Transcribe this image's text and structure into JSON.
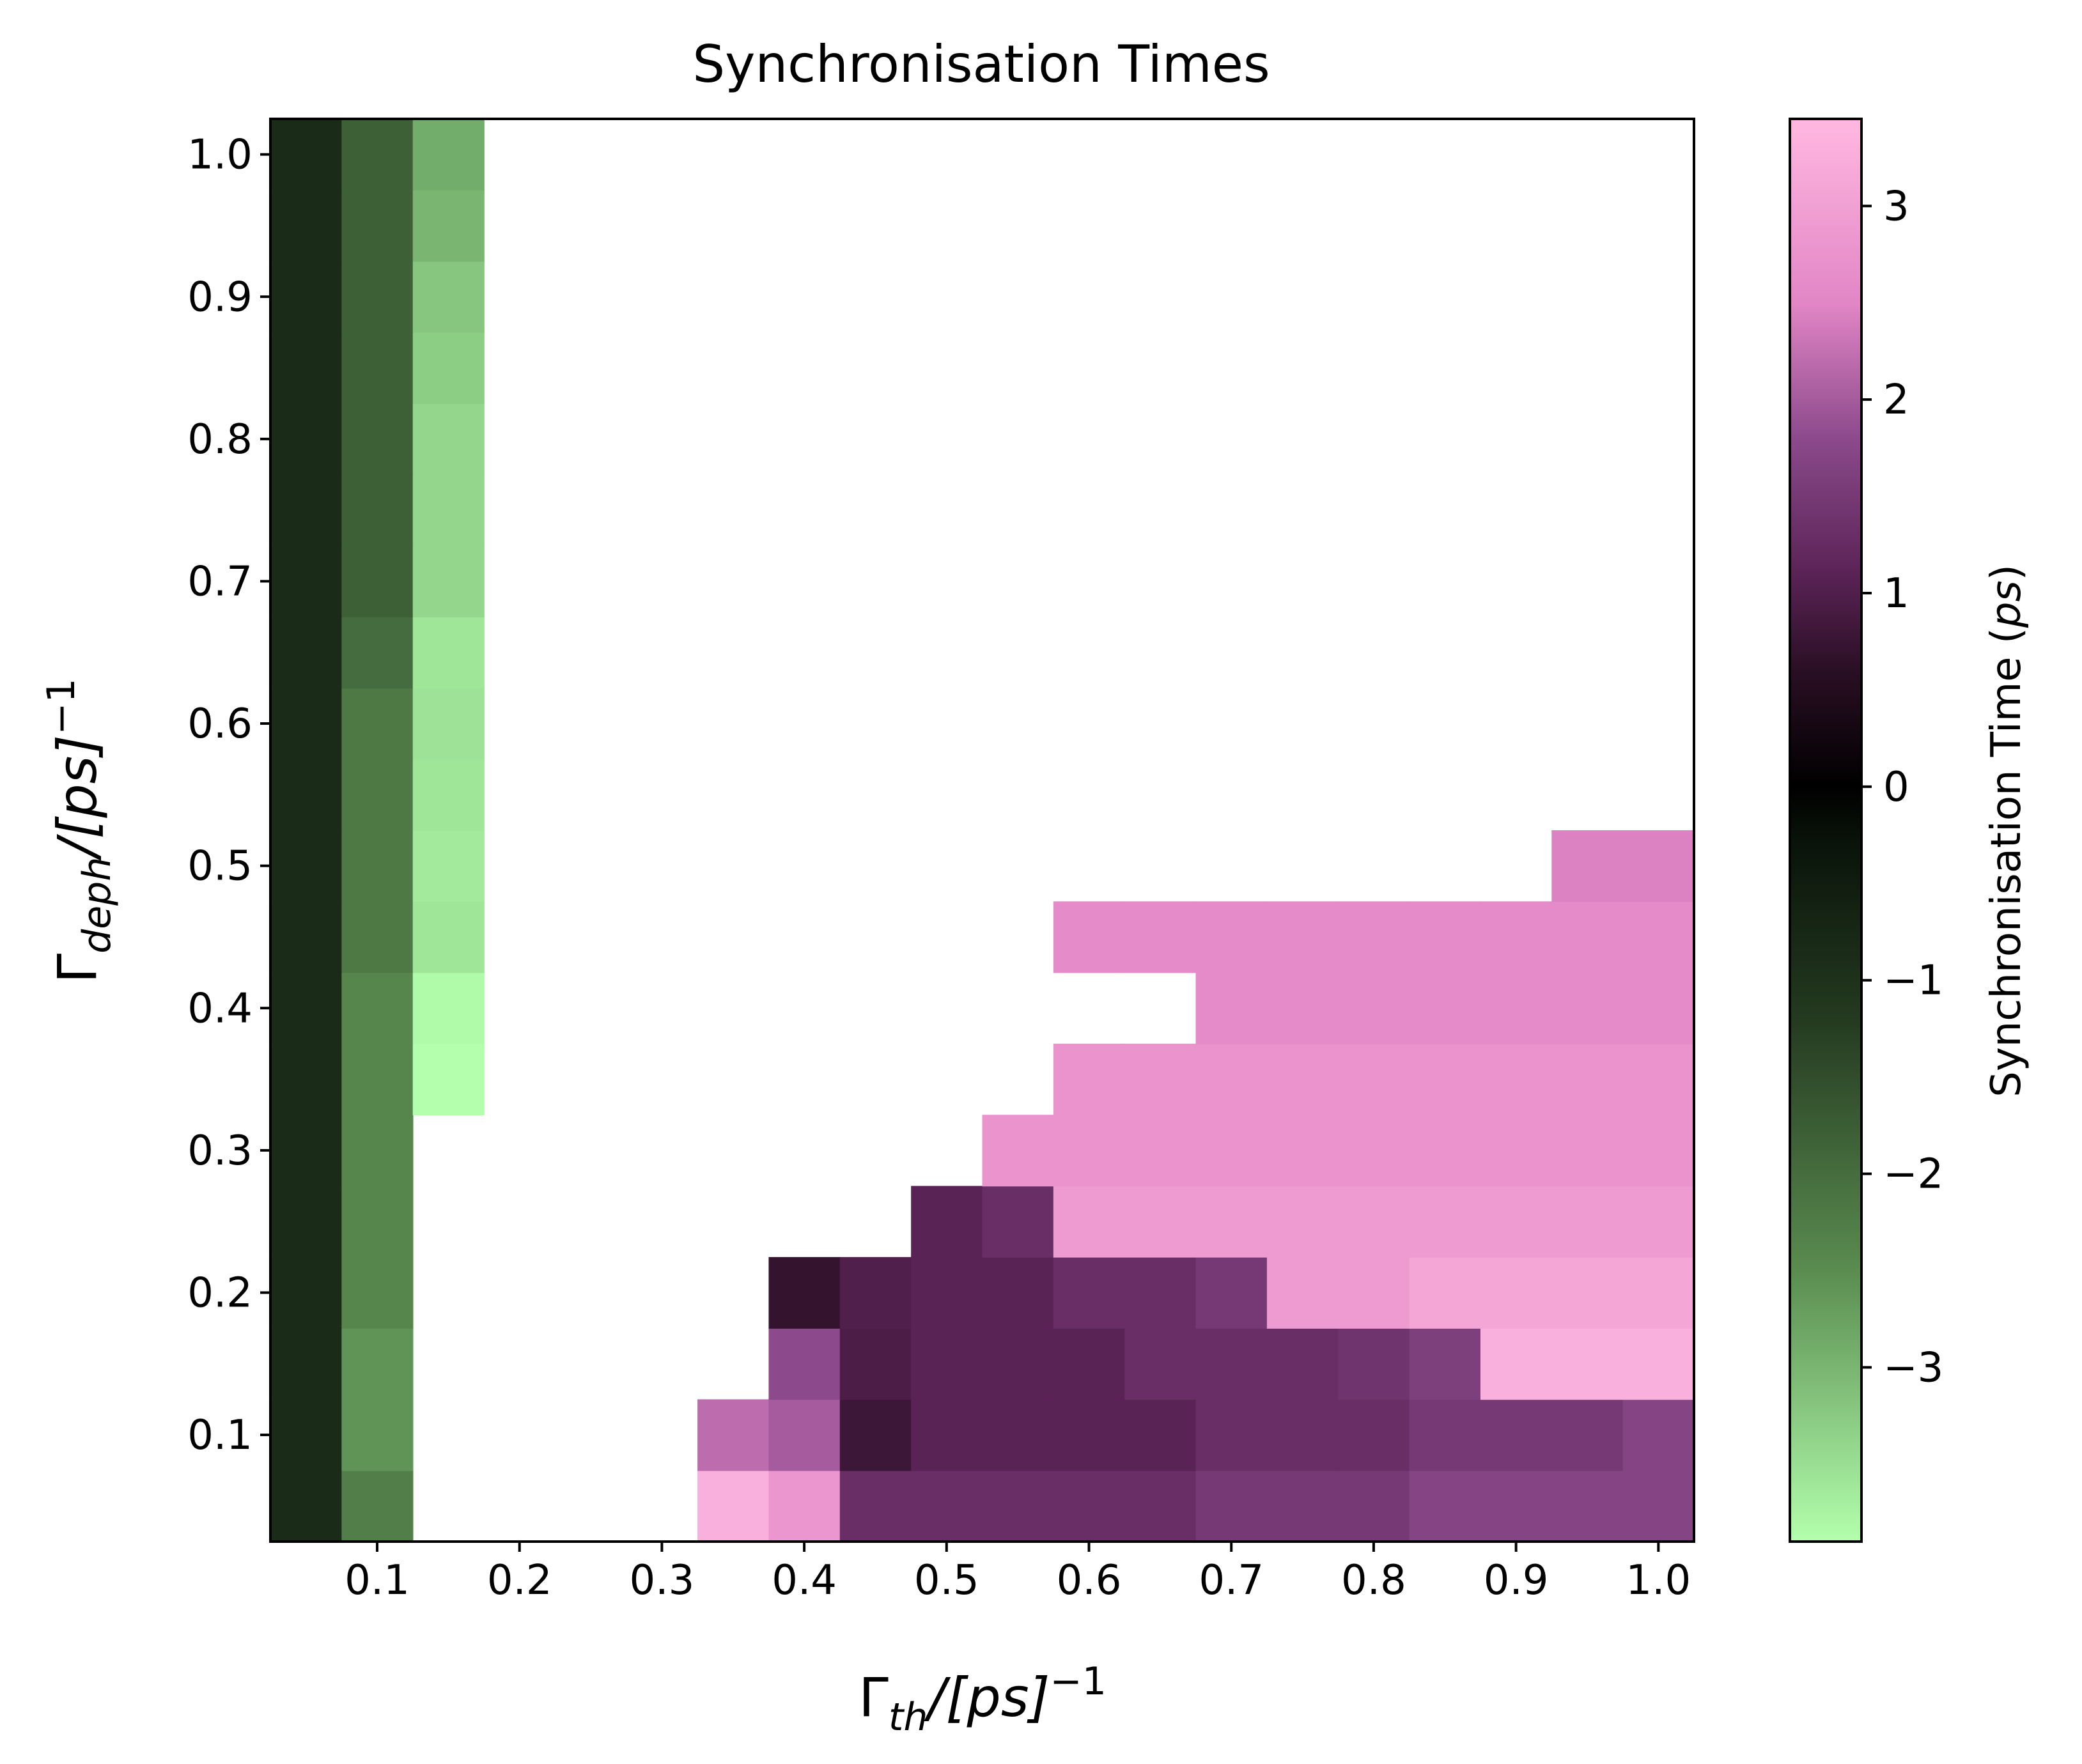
{
  "chart_data": {
    "type": "heatmap",
    "title": "Synchronisation Times",
    "xlabel": {
      "base": "Γ",
      "sub": "th",
      "rest": "/[ps]",
      "sup": "−1"
    },
    "ylabel": {
      "base": "Γ",
      "sub": "deph",
      "rest": "/[ps]",
      "sup": "−1"
    },
    "x": [
      0.05,
      0.1,
      0.15,
      0.2,
      0.25,
      0.3,
      0.35,
      0.4,
      0.45,
      0.5,
      0.55,
      0.6,
      0.65,
      0.7,
      0.75,
      0.8,
      0.85,
      0.9,
      0.95,
      1.0
    ],
    "y": [
      0.05,
      0.1,
      0.15,
      0.2,
      0.25,
      0.3,
      0.35,
      0.4,
      0.45,
      0.5,
      0.55,
      0.6,
      0.65,
      0.7,
      0.75,
      0.8,
      0.85,
      0.9,
      0.95,
      1.0
    ],
    "xlim": [
      0.025,
      1.025
    ],
    "ylim": [
      0.025,
      1.025
    ],
    "xticks": [
      "0.1",
      "0.2",
      "0.3",
      "0.4",
      "0.5",
      "0.6",
      "0.7",
      "0.8",
      "0.9",
      "1.0"
    ],
    "yticks": [
      "0.1",
      "0.2",
      "0.3",
      "0.4",
      "0.5",
      "0.6",
      "0.7",
      "0.8",
      "0.9",
      "1.0"
    ],
    "values": [
      [
        -0.85,
        -2.3,
        null,
        null,
        null,
        null,
        3.3,
        2.8,
        1.3,
        1.3,
        1.3,
        1.3,
        1.3,
        1.5,
        1.5,
        1.5,
        1.7,
        1.7,
        1.7,
        1.7
      ],
      [
        -0.85,
        -2.6,
        null,
        null,
        null,
        null,
        2.2,
        2.0,
        0.8,
        1.1,
        1.1,
        1.1,
        1.1,
        1.3,
        1.3,
        1.3,
        1.5,
        1.5,
        1.5,
        1.7
      ],
      [
        -0.85,
        -2.6,
        null,
        null,
        null,
        null,
        null,
        1.8,
        0.95,
        1.1,
        1.1,
        1.1,
        1.3,
        1.3,
        1.3,
        1.4,
        1.6,
        3.3,
        3.3,
        3.3
      ],
      [
        -0.85,
        -2.4,
        null,
        null,
        null,
        null,
        null,
        0.7,
        1.0,
        1.1,
        1.1,
        1.3,
        1.3,
        1.5,
        2.9,
        2.9,
        3.1,
        3.1,
        3.1,
        3.1
      ],
      [
        -0.85,
        -2.4,
        null,
        null,
        null,
        null,
        null,
        null,
        null,
        1.1,
        1.3,
        2.9,
        2.9,
        2.9,
        2.9,
        2.9,
        2.9,
        2.9,
        2.9,
        2.9
      ],
      [
        -0.85,
        -2.4,
        null,
        null,
        null,
        null,
        null,
        null,
        null,
        null,
        2.75,
        2.75,
        2.75,
        2.75,
        2.75,
        2.75,
        2.75,
        2.75,
        2.75,
        2.75
      ],
      [
        -0.85,
        -2.4,
        -3.9,
        null,
        null,
        null,
        null,
        null,
        null,
        null,
        null,
        2.75,
        2.75,
        2.75,
        2.75,
        2.75,
        2.75,
        2.75,
        2.75,
        2.75
      ],
      [
        -0.85,
        -2.4,
        -3.85,
        null,
        null,
        null,
        null,
        null,
        null,
        null,
        null,
        null,
        null,
        2.6,
        2.6,
        2.6,
        2.6,
        2.6,
        2.6,
        2.6
      ],
      [
        -0.85,
        -2.2,
        -3.6,
        null,
        null,
        null,
        null,
        null,
        null,
        null,
        null,
        2.6,
        2.6,
        2.6,
        2.6,
        2.6,
        2.6,
        2.6,
        2.6,
        2.6
      ],
      [
        -0.85,
        -2.2,
        -3.65,
        null,
        null,
        null,
        null,
        null,
        null,
        null,
        null,
        null,
        null,
        null,
        null,
        null,
        null,
        null,
        2.45,
        2.45
      ],
      [
        -0.85,
        -2.2,
        -3.6,
        null,
        null,
        null,
        null,
        null,
        null,
        null,
        null,
        null,
        null,
        null,
        null,
        null,
        null,
        null,
        null,
        null
      ],
      [
        -0.85,
        -2.2,
        -3.55,
        null,
        null,
        null,
        null,
        null,
        null,
        null,
        null,
        null,
        null,
        null,
        null,
        null,
        null,
        null,
        null,
        null
      ],
      [
        -0.85,
        -2.0,
        -3.6,
        null,
        null,
        null,
        null,
        null,
        null,
        null,
        null,
        null,
        null,
        null,
        null,
        null,
        null,
        null,
        null,
        null
      ],
      [
        -0.85,
        -1.8,
        -3.4,
        null,
        null,
        null,
        null,
        null,
        null,
        null,
        null,
        null,
        null,
        null,
        null,
        null,
        null,
        null,
        null,
        null
      ],
      [
        -0.85,
        -1.8,
        -3.4,
        null,
        null,
        null,
        null,
        null,
        null,
        null,
        null,
        null,
        null,
        null,
        null,
        null,
        null,
        null,
        null,
        null
      ],
      [
        -0.85,
        -1.8,
        -3.4,
        null,
        null,
        null,
        null,
        null,
        null,
        null,
        null,
        null,
        null,
        null,
        null,
        null,
        null,
        null,
        null,
        null
      ],
      [
        -0.85,
        -1.8,
        -3.3,
        null,
        null,
        null,
        null,
        null,
        null,
        null,
        null,
        null,
        null,
        null,
        null,
        null,
        null,
        null,
        null,
        null
      ],
      [
        -0.85,
        -1.8,
        -3.2,
        null,
        null,
        null,
        null,
        null,
        null,
        null,
        null,
        null,
        null,
        null,
        null,
        null,
        null,
        null,
        null,
        null
      ],
      [
        -0.85,
        -1.8,
        -3.0,
        null,
        null,
        null,
        null,
        null,
        null,
        null,
        null,
        null,
        null,
        null,
        null,
        null,
        null,
        null,
        null,
        null
      ],
      [
        -0.85,
        -1.8,
        -2.9,
        null,
        null,
        null,
        null,
        null,
        null,
        null,
        null,
        null,
        null,
        null,
        null,
        null,
        null,
        null,
        null,
        null
      ]
    ],
    "colorbar": {
      "label": "Synchronisation Time",
      "label_unit": "ps",
      "vmin": -3.9,
      "vmax": 3.45,
      "ticks": [
        3,
        2,
        1,
        0,
        -1,
        -2,
        -3
      ],
      "tick_labels": [
        "3",
        "2",
        "1",
        "0",
        "−1",
        "−2",
        "−3"
      ],
      "colormap": "PiYG-like: light green (#b3ffad) → dark green → black (#000000) → dark purple → light pink (#ffb8e0)",
      "stops": [
        {
          "v": -3.9,
          "c": "#b3ffad"
        },
        {
          "v": -2.5,
          "c": "#5a8c50"
        },
        {
          "v": -1.2,
          "c": "#243a20"
        },
        {
          "v": -0.3,
          "c": "#0a140a"
        },
        {
          "v": 0.0,
          "c": "#000000"
        },
        {
          "v": 0.6,
          "c": "#2a0f24"
        },
        {
          "v": 1.1,
          "c": "#5a2356"
        },
        {
          "v": 1.8,
          "c": "#8c4a8c"
        },
        {
          "v": 2.5,
          "c": "#e286c6"
        },
        {
          "v": 3.45,
          "c": "#ffb8e0"
        }
      ]
    },
    "grid": false,
    "legend": "none"
  }
}
